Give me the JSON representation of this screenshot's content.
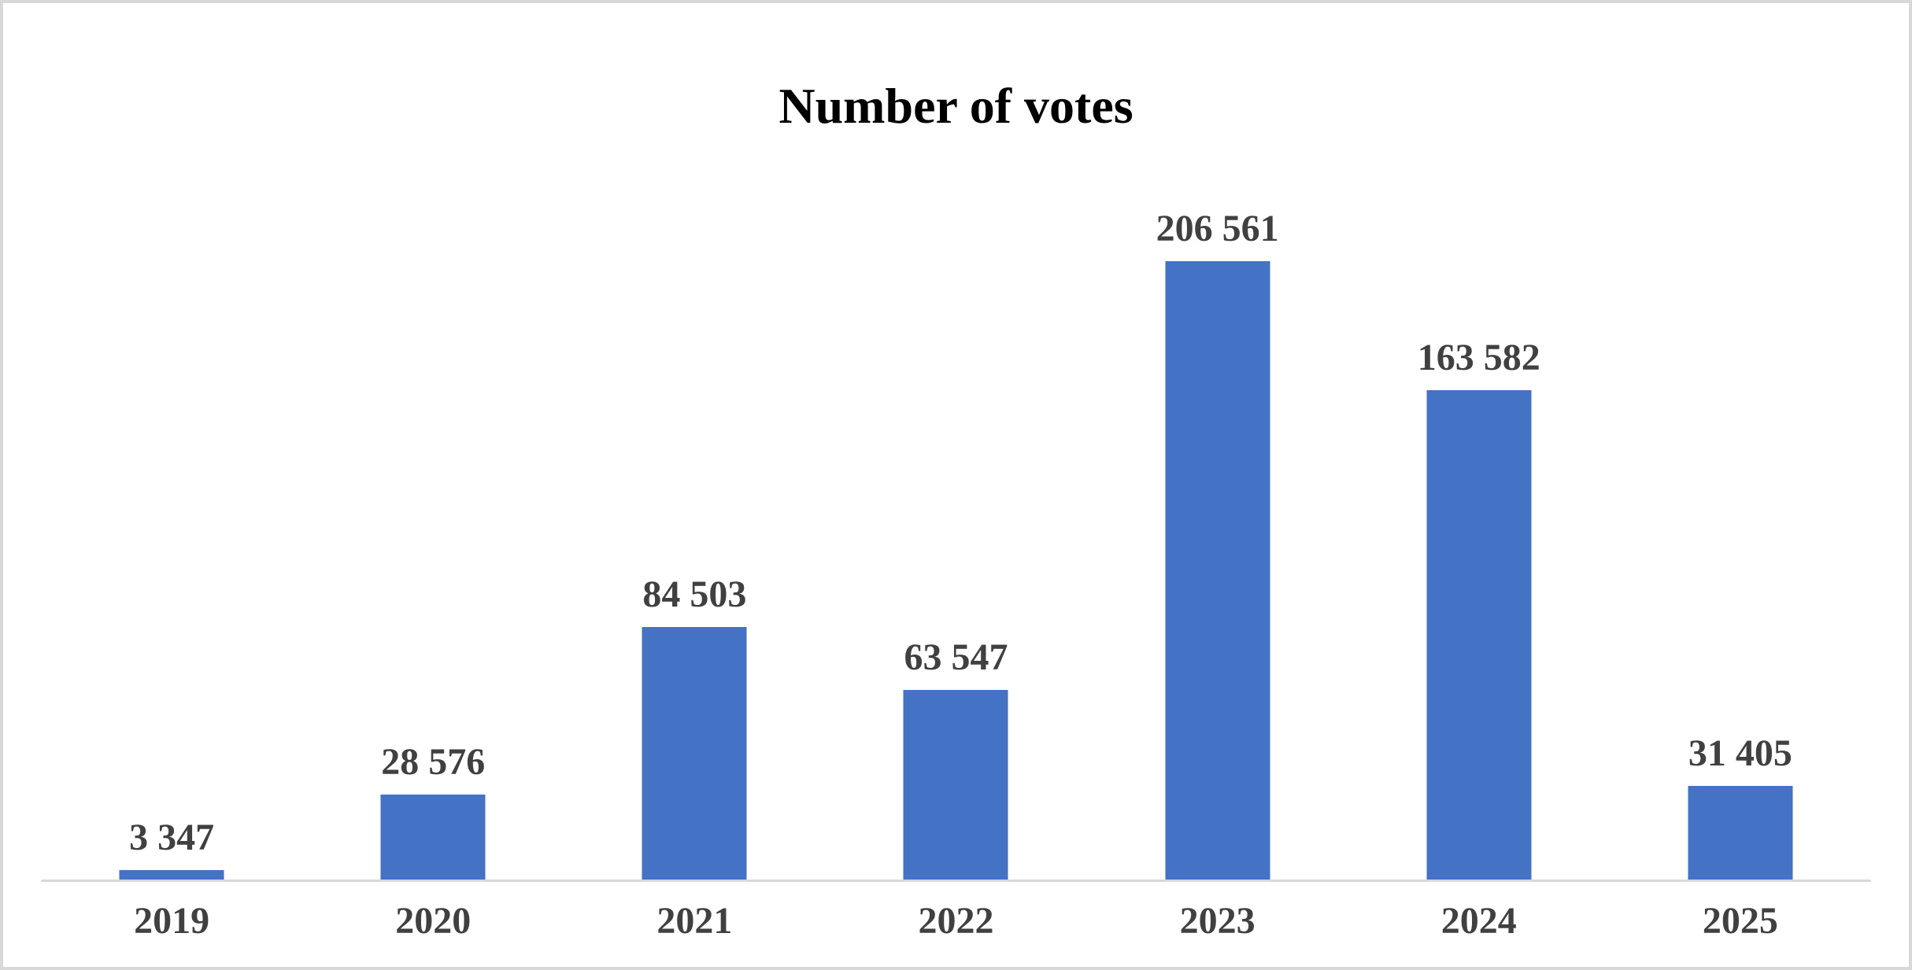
{
  "chart_data": {
    "type": "bar",
    "title": "Number of votes",
    "categories": [
      "2019",
      "2020",
      "2021",
      "2022",
      "2023",
      "2024",
      "2025"
    ],
    "values": [
      3347,
      28576,
      84503,
      63547,
      206561,
      163582,
      31405
    ],
    "labels": [
      "3 347",
      "28 576",
      "84 503",
      "63 547",
      "206 561",
      "163 582",
      "31 405"
    ],
    "xlabel": "",
    "ylabel": "",
    "grid": false,
    "legend": false,
    "y_axis_visible": false,
    "data_labels_visible": true,
    "colors": {
      "bar": "#4472C4",
      "data_label": "#404040",
      "tick_label": "#404040",
      "title": "#000000",
      "axis_line": "#D9D9D9",
      "frame_border": "#D8D8D8",
      "background": "#FFFFFF"
    }
  }
}
